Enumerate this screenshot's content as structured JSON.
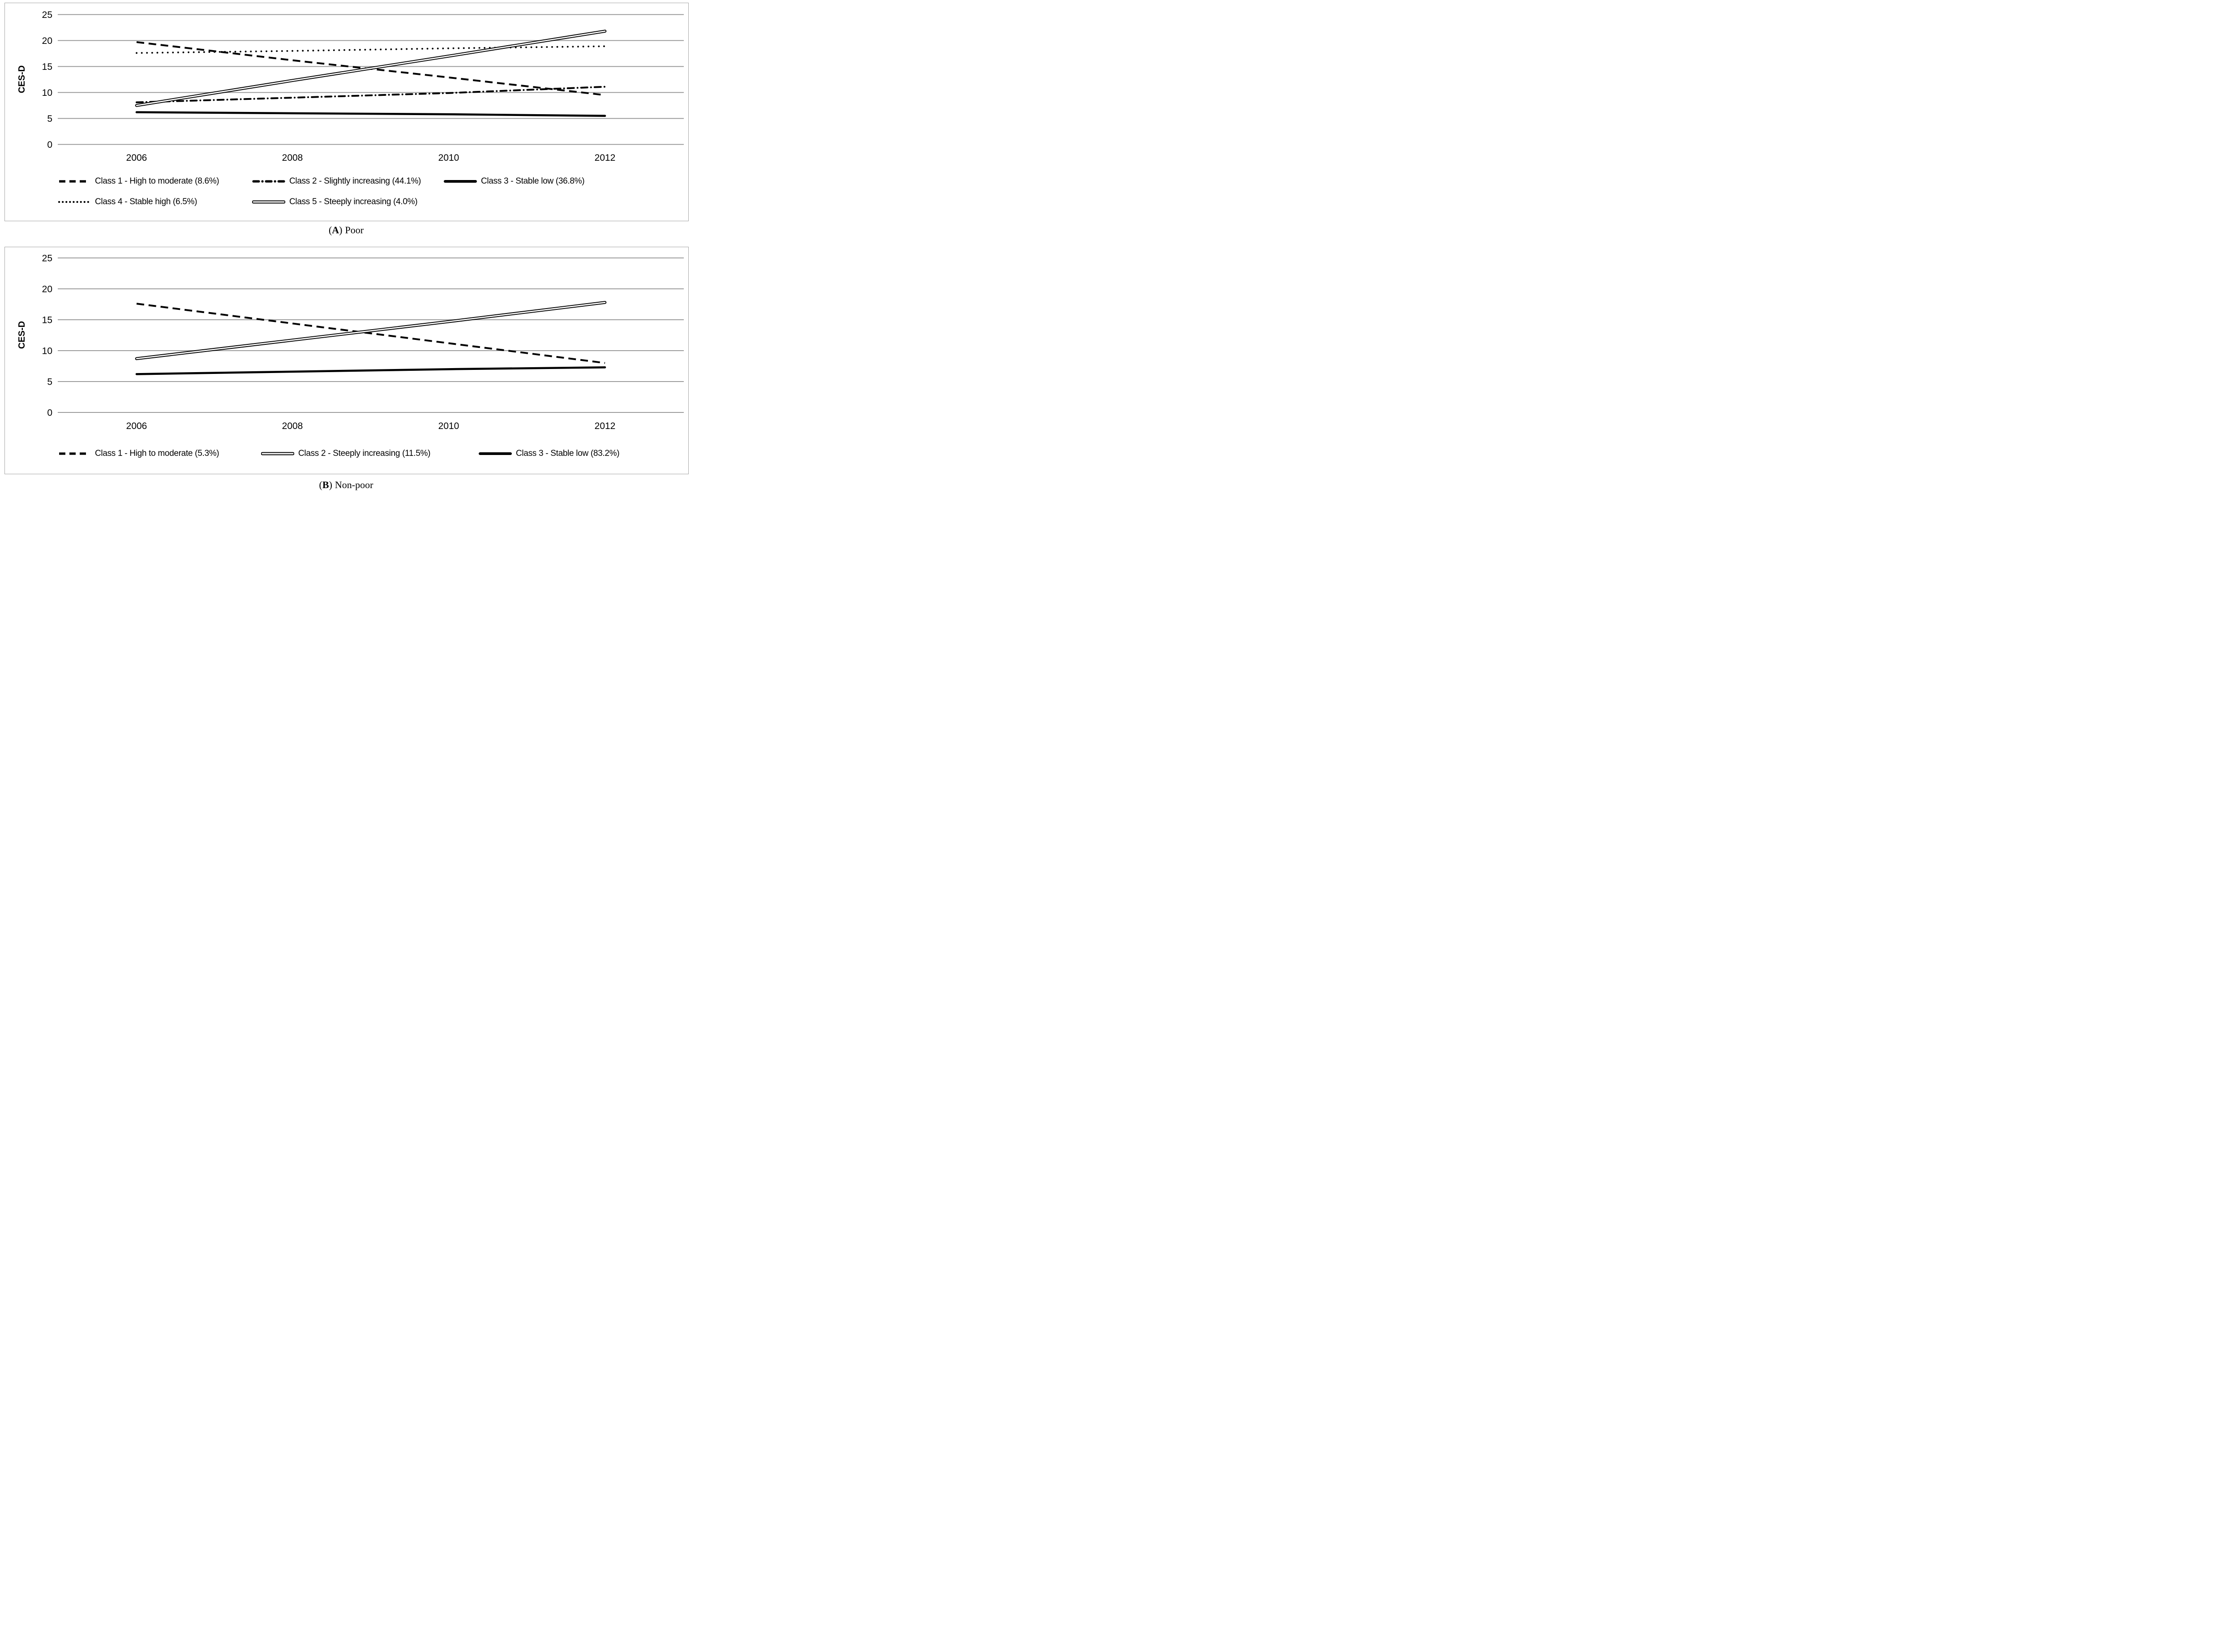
{
  "figure": {
    "panels": [
      {
        "caption": {
          "open": "(",
          "label": "A",
          "close": ")",
          "text": "Poor"
        }
      },
      {
        "caption": {
          "open": "(",
          "label": "B",
          "close": ")",
          "text": "Non-poor"
        }
      }
    ],
    "colors": {
      "line": "#000000",
      "gridline": "#8f8f8f",
      "panel_border": "#a6a6a6",
      "background": "#ffffff"
    }
  },
  "chart_data": [
    {
      "type": "line",
      "panel": "A",
      "title": "",
      "xlabel": "",
      "ylabel": "CES-D",
      "x": [
        "2006",
        "2008",
        "2010",
        "2012"
      ],
      "ylim": [
        0,
        25
      ],
      "yticks": [
        0,
        5,
        10,
        15,
        20,
        25
      ],
      "grid": true,
      "legend_position": "bottom",
      "series": [
        {
          "name": "Class 1 - High to moderate (8.6%)",
          "style": "dashed",
          "values": [
            19.7,
            16.2,
            12.9,
            9.5
          ]
        },
        {
          "name": "Class 2 - Slightly increasing (44.1%)",
          "style": "dash-dot",
          "values": [
            8.1,
            9.0,
            9.9,
            11.1
          ]
        },
        {
          "name": "Class 3 - Stable low (36.8%)",
          "style": "solid-thick",
          "values": [
            6.2,
            6.0,
            5.8,
            5.5
          ]
        },
        {
          "name": "Class 4 - Stable high (6.5%)",
          "style": "dotted",
          "values": [
            17.6,
            18.0,
            18.5,
            18.9
          ]
        },
        {
          "name": "Class 5 - Steeply increasing (4.0%)",
          "style": "double",
          "values": [
            7.5,
            12.3,
            17.0,
            21.8
          ]
        }
      ]
    },
    {
      "type": "line",
      "panel": "B",
      "title": "",
      "xlabel": "",
      "ylabel": "CES-D",
      "x": [
        "2006",
        "2008",
        "2010",
        "2012"
      ],
      "ylim": [
        0,
        25
      ],
      "yticks": [
        0,
        5,
        10,
        15,
        20,
        25
      ],
      "grid": true,
      "legend_position": "bottom",
      "series": [
        {
          "name": "Class 1 - High to moderate (5.3%)",
          "style": "dashed",
          "values": [
            17.6,
            14.4,
            11.2,
            8.0
          ]
        },
        {
          "name": "Class 2 - Steeply increasing (11.5%)",
          "style": "double",
          "values": [
            8.7,
            11.7,
            14.7,
            17.8
          ]
        },
        {
          "name": "Class 3 - Stable low (83.2%)",
          "style": "solid-thick",
          "values": [
            6.2,
            6.6,
            7.0,
            7.3
          ]
        }
      ]
    }
  ]
}
